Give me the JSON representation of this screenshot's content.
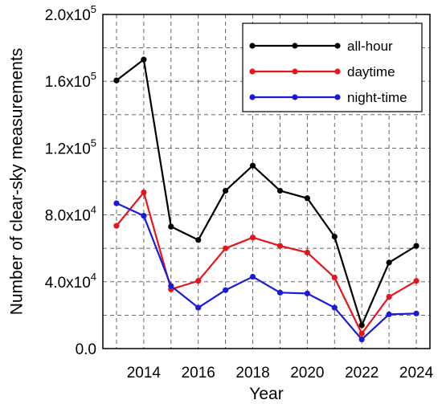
{
  "chart_data": {
    "type": "line",
    "title": "",
    "xlabel": "Year",
    "ylabel": "Number of clear-sky measurements",
    "x": [
      2013,
      2014,
      2015,
      2016,
      2017,
      2018,
      2019,
      2020,
      2021,
      2022,
      2023,
      2024
    ],
    "xlim": [
      2012.5,
      2024.5
    ],
    "ylim": [
      0,
      200000
    ],
    "x_ticks": [
      {
        "value": 2014,
        "label": "2014"
      },
      {
        "value": 2016,
        "label": "2016"
      },
      {
        "value": 2018,
        "label": "2018"
      },
      {
        "value": 2020,
        "label": "2020"
      },
      {
        "value": 2022,
        "label": "2022"
      },
      {
        "value": 2024,
        "label": "2024"
      }
    ],
    "y_ticks": [
      {
        "value": 0,
        "mantissa": "0.0",
        "exponent": ""
      },
      {
        "value": 40000,
        "mantissa": "4.0x10",
        "exponent": "4"
      },
      {
        "value": 80000,
        "mantissa": "8.0x10",
        "exponent": "4"
      },
      {
        "value": 120000,
        "mantissa": "1.2x10",
        "exponent": "5"
      },
      {
        "value": 160000,
        "mantissa": "1.6x10",
        "exponent": "5"
      },
      {
        "value": 200000,
        "mantissa": "2.0x10",
        "exponent": "5"
      }
    ],
    "grid": true,
    "legend_position": "top-right",
    "series": [
      {
        "name": "all-hour",
        "color": "#000000",
        "values": [
          160500,
          173000,
          73000,
          65000,
          94500,
          109500,
          94500,
          90000,
          67000,
          14000,
          51500,
          61500
        ]
      },
      {
        "name": "daytime",
        "color": "#e8141b",
        "values": [
          73500,
          93500,
          35500,
          40500,
          60000,
          66500,
          61500,
          57500,
          42500,
          9000,
          31000,
          40500
        ]
      },
      {
        "name": "night-time",
        "color": "#1a1adb",
        "values": [
          87000,
          79500,
          37500,
          24500,
          35000,
          43000,
          33500,
          33000,
          24500,
          5500,
          20500,
          21000
        ]
      }
    ]
  }
}
